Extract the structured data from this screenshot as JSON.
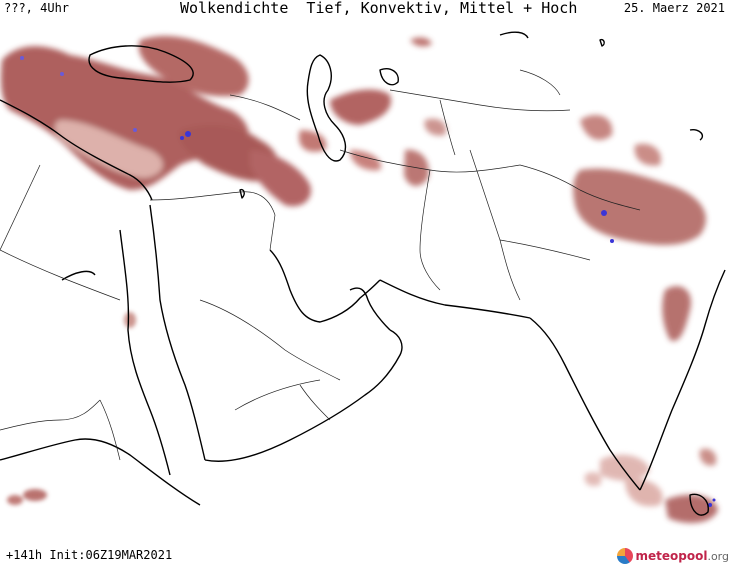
{
  "header": {
    "left_label": "???, 4Uhr",
    "title": "Wolkendichte  Tief, Konvektiv, Mittel + Hoch",
    "date": "25. Maerz 2021"
  },
  "footer": {
    "run_info": "+141h Init:06Z19MAR2021"
  },
  "brand": {
    "name": "meteopool",
    "tld": ".org"
  },
  "colors": {
    "cloud_dark": "#8b2a2a",
    "cloud_mid": "#b35a55",
    "cloud_light": "#e3b7b0",
    "convective": "#3a35d8",
    "coast": "#000000",
    "border": "#222222"
  }
}
